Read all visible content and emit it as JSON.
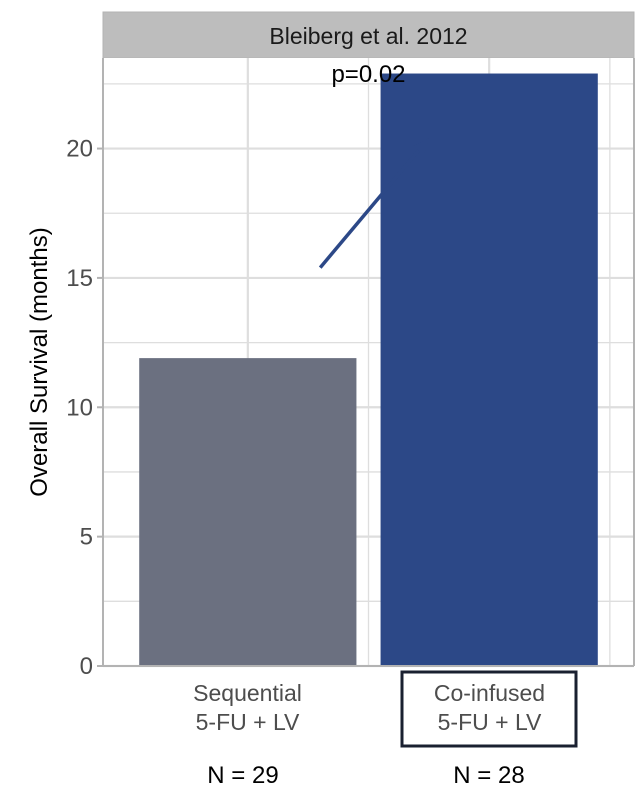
{
  "chart_data": {
    "type": "bar",
    "facet_title": "Bleiberg et al. 2012",
    "ylabel": "Overall Survival (months)",
    "ylim": [
      0,
      23.5
    ],
    "yticks": [
      0,
      5,
      10,
      15,
      20
    ],
    "grid": true,
    "categories": [
      {
        "line1": "Sequential",
        "line2": "5-FU + LV",
        "n_label": "N = 29",
        "highlighted": false
      },
      {
        "line1": "Co-infused",
        "line2": "5-FU + LV",
        "n_label": "N = 28",
        "highlighted": true
      }
    ],
    "values": [
      11.9,
      22.9
    ],
    "bar_colors": [
      "#6b7080",
      "#2c4887"
    ],
    "annotation": "p=0.02",
    "arrow": {
      "from": [
        0.3,
        15.4
      ],
      "to": [
        0.75,
        20.4
      ]
    },
    "colors": {
      "strip_bg": "#bdbdbd",
      "grid": "#dedede",
      "panel_border": "#b3b3b3",
      "arrow": "#2c4887",
      "highlight_box": "#1a2030"
    }
  }
}
